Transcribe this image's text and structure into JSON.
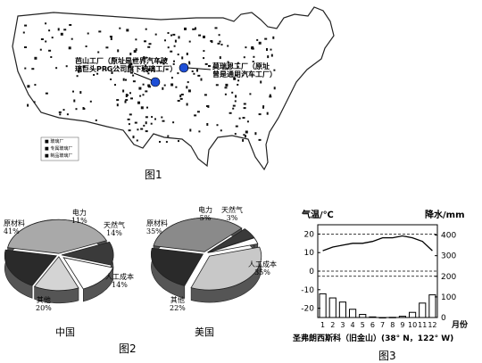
{
  "figure1": {
    "caption": "图1",
    "annotation_left": [
      "芭山工厂（原址是世界汽车玻",
      "璃巨头PPG公司旗下玻璃工厂）"
    ],
    "annotation_right": [
      "莫瑞恩工厂（原址",
      "曾是通用汽车工厂）"
    ],
    "legend": [
      "■ 玻璃厂",
      "■ 专属玻璃厂",
      "■ 制品玻璃厂"
    ]
  },
  "figure2": {
    "caption": "图2",
    "china": {
      "label": "中国",
      "slices": [
        {
          "name": "原材料",
          "value": 41,
          "text": "41%",
          "color": "#a9a9a9"
        },
        {
          "name": "电力",
          "value": 11,
          "text": "11%",
          "color": "#3a3a3a"
        },
        {
          "name": "天然气",
          "value": 14,
          "text": "14%",
          "color": "#ffffff"
        },
        {
          "name": "人工成本",
          "value": 14,
          "text": "14%",
          "color": "#d4d4d4"
        },
        {
          "name": "其他",
          "value": 20,
          "text": "20%",
          "color": "#2a2a2a"
        }
      ]
    },
    "usa": {
      "label": "美国",
      "slices": [
        {
          "name": "原材料",
          "value": 35,
          "text": "35%",
          "color": "#8a8a8a"
        },
        {
          "name": "电力",
          "value": 5,
          "text": "5%",
          "color": "#3a3a3a"
        },
        {
          "name": "天然气",
          "value": 3,
          "text": "3%",
          "color": "#ffffff"
        },
        {
          "name": "人工成本",
          "value": 35,
          "text": "35%",
          "color": "#c8c8c8"
        },
        {
          "name": "其他",
          "value": 22,
          "text": "22%",
          "color": "#2a2a2a"
        }
      ]
    }
  },
  "figure3": {
    "caption": "图3",
    "left_axis_title": "气温/℃",
    "right_axis_title": "降水/mm",
    "left_ticks": [
      "20",
      "10",
      "0",
      "-10",
      "-20"
    ],
    "right_ticks": [
      "400",
      "300",
      "200",
      "100",
      "0"
    ],
    "months": [
      "1",
      "2",
      "3",
      "4",
      "5",
      "6",
      "7",
      "8",
      "9",
      "10",
      "11",
      "12"
    ],
    "month_unit": "月份",
    "station": "圣弗朗西斯科（旧金山）(38° N，122° W)"
  },
  "chart_data": {
    "type": "bar",
    "title": "圣弗朗西斯科（旧金山）(38° N，122° W)",
    "categories": [
      "1",
      "2",
      "3",
      "4",
      "5",
      "6",
      "7",
      "8",
      "9",
      "10",
      "11",
      "12"
    ],
    "series": [
      {
        "name": "降水/mm",
        "type": "bar",
        "values": [
          115,
          95,
          75,
          40,
          15,
          3,
          0,
          1,
          6,
          25,
          70,
          110
        ]
      },
      {
        "name": "气温/℃",
        "type": "line",
        "values": [
          11,
          13,
          14,
          15,
          15,
          16,
          18,
          18,
          19,
          18,
          16,
          11
        ]
      }
    ],
    "ylim_left": [
      -25,
      25
    ],
    "ylim_right": [
      0,
      450
    ],
    "xlabel": "月份",
    "ylabel_left": "气温/℃",
    "ylabel_right": "降水/mm",
    "grid": "dashed at 20, 0 and 200 mm"
  }
}
